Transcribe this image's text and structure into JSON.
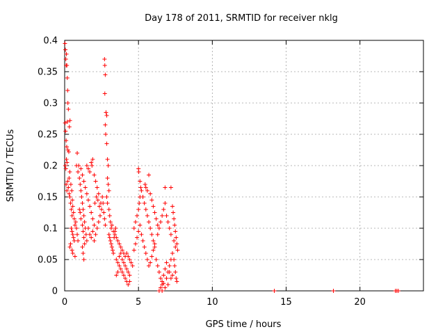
{
  "chart_data": {
    "type": "scatter",
    "title": "Day 178 of 2011, SRMTID for receiver nklg",
    "xlabel": "GPS time / hours",
    "ylabel": "SRMTID / TECUs",
    "xlim": [
      0,
      24.3
    ],
    "ylim": [
      0,
      0.4
    ],
    "xticks": [
      0,
      5,
      10,
      15,
      20
    ],
    "xtick_labels": [
      "0",
      "5",
      "10",
      "15",
      "20"
    ],
    "yticks": [
      0,
      0.05,
      0.1,
      0.15,
      0.2,
      0.25,
      0.3,
      0.35,
      0.4
    ],
    "ytick_labels": [
      "0",
      "0.05",
      "0.1",
      "0.15",
      "0.2",
      "0.25",
      "0.3",
      "0.35",
      "0.4"
    ],
    "grid": true,
    "marker": "plus",
    "color": "#ff0000",
    "series": [
      {
        "name": "SRMTID",
        "points": [
          [
            0.02,
            0.395
          ],
          [
            0.05,
            0.385
          ],
          [
            0.08,
            0.37
          ],
          [
            0.1,
            0.36
          ],
          [
            0.12,
            0.378
          ],
          [
            0.15,
            0.36
          ],
          [
            0.18,
            0.34
          ],
          [
            0.2,
            0.32
          ],
          [
            0.22,
            0.3
          ],
          [
            0.25,
            0.29
          ],
          [
            0.03,
            0.268
          ],
          [
            0.06,
            0.255
          ],
          [
            0.1,
            0.24
          ],
          [
            0.14,
            0.23
          ],
          [
            0.18,
            0.27
          ],
          [
            0.22,
            0.225
          ],
          [
            0.28,
            0.222
          ],
          [
            0.32,
            0.262
          ],
          [
            0.36,
            0.272
          ],
          [
            0.04,
            0.2
          ],
          [
            0.08,
            0.195
          ],
          [
            0.12,
            0.21
          ],
          [
            0.16,
            0.205
          ],
          [
            0.2,
            0.175
          ],
          [
            0.25,
            0.165
          ],
          [
            0.3,
            0.155
          ],
          [
            0.35,
            0.15
          ],
          [
            0.4,
            0.14
          ],
          [
            0.45,
            0.13
          ],
          [
            0.5,
            0.12
          ],
          [
            0.1,
            0.17
          ],
          [
            0.15,
            0.16
          ],
          [
            0.3,
            0.18
          ],
          [
            0.35,
            0.19
          ],
          [
            0.42,
            0.17
          ],
          [
            0.48,
            0.16
          ],
          [
            0.52,
            0.145
          ],
          [
            0.55,
            0.135
          ],
          [
            0.6,
            0.125
          ],
          [
            0.65,
            0.115
          ],
          [
            0.45,
            0.1
          ],
          [
            0.5,
            0.095
          ],
          [
            0.55,
            0.09
          ],
          [
            0.6,
            0.085
          ],
          [
            0.65,
            0.08
          ],
          [
            0.7,
            0.105
          ],
          [
            0.75,
            0.11
          ],
          [
            0.8,
            0.1
          ],
          [
            0.85,
            0.09
          ],
          [
            0.9,
            0.08
          ],
          [
            0.35,
            0.07
          ],
          [
            0.4,
            0.075
          ],
          [
            0.5,
            0.065
          ],
          [
            0.55,
            0.06
          ],
          [
            0.7,
            0.055
          ],
          [
            0.85,
            0.22
          ],
          [
            0.8,
            0.2
          ],
          [
            0.9,
            0.19
          ],
          [
            0.95,
            0.2
          ],
          [
            1.0,
            0.18
          ],
          [
            1.05,
            0.17
          ],
          [
            1.1,
            0.16
          ],
          [
            1.15,
            0.15
          ],
          [
            1.2,
            0.14
          ],
          [
            1.25,
            0.13
          ],
          [
            1.3,
            0.12
          ],
          [
            1.35,
            0.11
          ],
          [
            1.4,
            0.1
          ],
          [
            1.45,
            0.09
          ],
          [
            1.5,
            0.08
          ],
          [
            1.0,
            0.13
          ],
          [
            1.05,
            0.125
          ],
          [
            1.1,
            0.115
          ],
          [
            1.2,
            0.105
          ],
          [
            1.25,
            0.095
          ],
          [
            1.3,
            0.085
          ],
          [
            1.35,
            0.075
          ],
          [
            1.2,
            0.07
          ],
          [
            1.25,
            0.06
          ],
          [
            1.3,
            0.05
          ],
          [
            1.1,
            0.195
          ],
          [
            1.2,
            0.185
          ],
          [
            1.3,
            0.175
          ],
          [
            1.4,
            0.165
          ],
          [
            1.5,
            0.155
          ],
          [
            1.6,
            0.145
          ],
          [
            1.7,
            0.135
          ],
          [
            1.8,
            0.125
          ],
          [
            1.9,
            0.115
          ],
          [
            2.0,
            0.105
          ],
          [
            1.5,
            0.2
          ],
          [
            1.6,
            0.195
          ],
          [
            1.7,
            0.19
          ],
          [
            1.8,
            0.205
          ],
          [
            1.85,
            0.2
          ],
          [
            1.9,
            0.21
          ],
          [
            2.0,
            0.185
          ],
          [
            2.1,
            0.175
          ],
          [
            2.2,
            0.165
          ],
          [
            2.3,
            0.155
          ],
          [
            1.6,
            0.1
          ],
          [
            1.7,
            0.09
          ],
          [
            1.8,
            0.085
          ],
          [
            1.9,
            0.095
          ],
          [
            2.0,
            0.08
          ],
          [
            2.1,
            0.09
          ],
          [
            2.2,
            0.1
          ],
          [
            2.3,
            0.11
          ],
          [
            2.4,
            0.12
          ],
          [
            2.5,
            0.13
          ],
          [
            2.05,
            0.14
          ],
          [
            2.15,
            0.15
          ],
          [
            2.25,
            0.145
          ],
          [
            2.35,
            0.135
          ],
          [
            2.45,
            0.14
          ],
          [
            2.55,
            0.15
          ],
          [
            2.6,
            0.14
          ],
          [
            2.65,
            0.125
          ],
          [
            2.7,
            0.115
          ],
          [
            2.75,
            0.105
          ],
          [
            2.7,
            0.37
          ],
          [
            2.72,
            0.36
          ],
          [
            2.75,
            0.345
          ],
          [
            2.72,
            0.315
          ],
          [
            2.8,
            0.285
          ],
          [
            2.85,
            0.28
          ],
          [
            2.75,
            0.265
          ],
          [
            2.78,
            0.25
          ],
          [
            2.85,
            0.235
          ],
          [
            2.9,
            0.21
          ],
          [
            2.95,
            0.2
          ],
          [
            2.9,
            0.18
          ],
          [
            2.95,
            0.17
          ],
          [
            3.0,
            0.16
          ],
          [
            2.85,
            0.15
          ],
          [
            2.9,
            0.14
          ],
          [
            3.0,
            0.13
          ],
          [
            3.05,
            0.12
          ],
          [
            3.1,
            0.11
          ],
          [
            3.15,
            0.1
          ],
          [
            3.0,
            0.09
          ],
          [
            3.05,
            0.085
          ],
          [
            3.1,
            0.08
          ],
          [
            3.15,
            0.075
          ],
          [
            3.2,
            0.07
          ],
          [
            3.25,
            0.065
          ],
          [
            3.3,
            0.06
          ],
          [
            3.35,
            0.085
          ],
          [
            3.4,
            0.095
          ],
          [
            3.45,
            0.1
          ],
          [
            3.2,
            0.105
          ],
          [
            3.3,
            0.095
          ],
          [
            3.4,
            0.09
          ],
          [
            3.5,
            0.085
          ],
          [
            3.6,
            0.08
          ],
          [
            3.7,
            0.075
          ],
          [
            3.8,
            0.07
          ],
          [
            3.9,
            0.065
          ],
          [
            4.0,
            0.06
          ],
          [
            4.1,
            0.055
          ],
          [
            3.5,
            0.05
          ],
          [
            3.6,
            0.045
          ],
          [
            3.7,
            0.04
          ],
          [
            3.8,
            0.035
          ],
          [
            3.9,
            0.03
          ],
          [
            4.0,
            0.025
          ],
          [
            4.1,
            0.02
          ],
          [
            4.2,
            0.015
          ],
          [
            4.3,
            0.01
          ],
          [
            4.4,
            0.015
          ],
          [
            3.5,
            0.025
          ],
          [
            3.6,
            0.03
          ],
          [
            3.7,
            0.055
          ],
          [
            3.8,
            0.06
          ],
          [
            3.9,
            0.05
          ],
          [
            4.0,
            0.045
          ],
          [
            4.1,
            0.04
          ],
          [
            4.2,
            0.035
          ],
          [
            4.3,
            0.03
          ],
          [
            4.4,
            0.025
          ],
          [
            4.2,
            0.06
          ],
          [
            4.3,
            0.055
          ],
          [
            4.4,
            0.05
          ],
          [
            4.5,
            0.045
          ],
          [
            4.6,
            0.04
          ],
          [
            4.7,
            0.065
          ],
          [
            4.8,
            0.075
          ],
          [
            4.9,
            0.085
          ],
          [
            5.0,
            0.095
          ],
          [
            5.1,
            0.105
          ],
          [
            4.7,
            0.1
          ],
          [
            4.8,
            0.11
          ],
          [
            4.9,
            0.12
          ],
          [
            5.0,
            0.13
          ],
          [
            5.05,
            0.14
          ],
          [
            5.1,
            0.15
          ],
          [
            5.15,
            0.165
          ],
          [
            5.0,
            0.195
          ],
          [
            5.02,
            0.19
          ],
          [
            5.1,
            0.175
          ],
          [
            5.2,
            0.16
          ],
          [
            5.3,
            0.15
          ],
          [
            5.4,
            0.14
          ],
          [
            5.5,
            0.13
          ],
          [
            5.6,
            0.12
          ],
          [
            5.7,
            0.11
          ],
          [
            5.8,
            0.1
          ],
          [
            5.9,
            0.09
          ],
          [
            6.0,
            0.08
          ],
          [
            6.1,
            0.07
          ],
          [
            5.2,
            0.09
          ],
          [
            5.3,
            0.08
          ],
          [
            5.4,
            0.07
          ],
          [
            5.5,
            0.06
          ],
          [
            5.6,
            0.05
          ],
          [
            5.7,
            0.04
          ],
          [
            5.8,
            0.045
          ],
          [
            5.9,
            0.055
          ],
          [
            6.0,
            0.065
          ],
          [
            6.1,
            0.075
          ],
          [
            5.45,
            0.17
          ],
          [
            5.5,
            0.165
          ],
          [
            5.6,
            0.16
          ],
          [
            5.7,
            0.185
          ],
          [
            5.8,
            0.155
          ],
          [
            5.9,
            0.145
          ],
          [
            6.0,
            0.135
          ],
          [
            6.1,
            0.125
          ],
          [
            6.2,
            0.115
          ],
          [
            6.3,
            0.105
          ],
          [
            6.2,
            0.05
          ],
          [
            6.3,
            0.04
          ],
          [
            6.4,
            0.03
          ],
          [
            6.5,
            0.02
          ],
          [
            6.6,
            0.01
          ],
          [
            6.5,
            0.005
          ],
          [
            6.6,
            0.015
          ],
          [
            6.7,
            0.025
          ],
          [
            6.8,
            0.035
          ],
          [
            6.9,
            0.045
          ],
          [
            6.4,
            0.0
          ],
          [
            6.6,
            0.0
          ],
          [
            6.8,
            0.005
          ],
          [
            7.0,
            0.01
          ],
          [
            6.7,
            0.012
          ],
          [
            6.9,
            0.02
          ],
          [
            7.0,
            0.03
          ],
          [
            7.1,
            0.04
          ],
          [
            7.2,
            0.05
          ],
          [
            7.3,
            0.06
          ],
          [
            6.3,
            0.09
          ],
          [
            6.4,
            0.1
          ],
          [
            6.5,
            0.11
          ],
          [
            6.6,
            0.12
          ],
          [
            6.7,
            0.13
          ],
          [
            6.8,
            0.14
          ],
          [
            6.9,
            0.12
          ],
          [
            7.0,
            0.11
          ],
          [
            7.1,
            0.1
          ],
          [
            7.2,
            0.09
          ],
          [
            6.8,
            0.165
          ],
          [
            7.2,
            0.165
          ],
          [
            7.3,
            0.135
          ],
          [
            7.35,
            0.125
          ],
          [
            7.4,
            0.115
          ],
          [
            7.45,
            0.105
          ],
          [
            7.5,
            0.095
          ],
          [
            7.55,
            0.085
          ],
          [
            7.6,
            0.075
          ],
          [
            7.65,
            0.065
          ],
          [
            7.4,
            0.05
          ],
          [
            7.45,
            0.04
          ],
          [
            7.5,
            0.03
          ],
          [
            7.55,
            0.02
          ],
          [
            7.6,
            0.015
          ],
          [
            7.3,
            0.025
          ],
          [
            7.2,
            0.02
          ],
          [
            7.1,
            0.03
          ],
          [
            7.4,
            0.08
          ],
          [
            7.5,
            0.07
          ],
          [
            14.2,
            0.0
          ],
          [
            18.2,
            0.0
          ],
          [
            22.4,
            0.0
          ],
          [
            22.5,
            0.0
          ],
          [
            22.6,
            0.0
          ]
        ]
      }
    ]
  }
}
